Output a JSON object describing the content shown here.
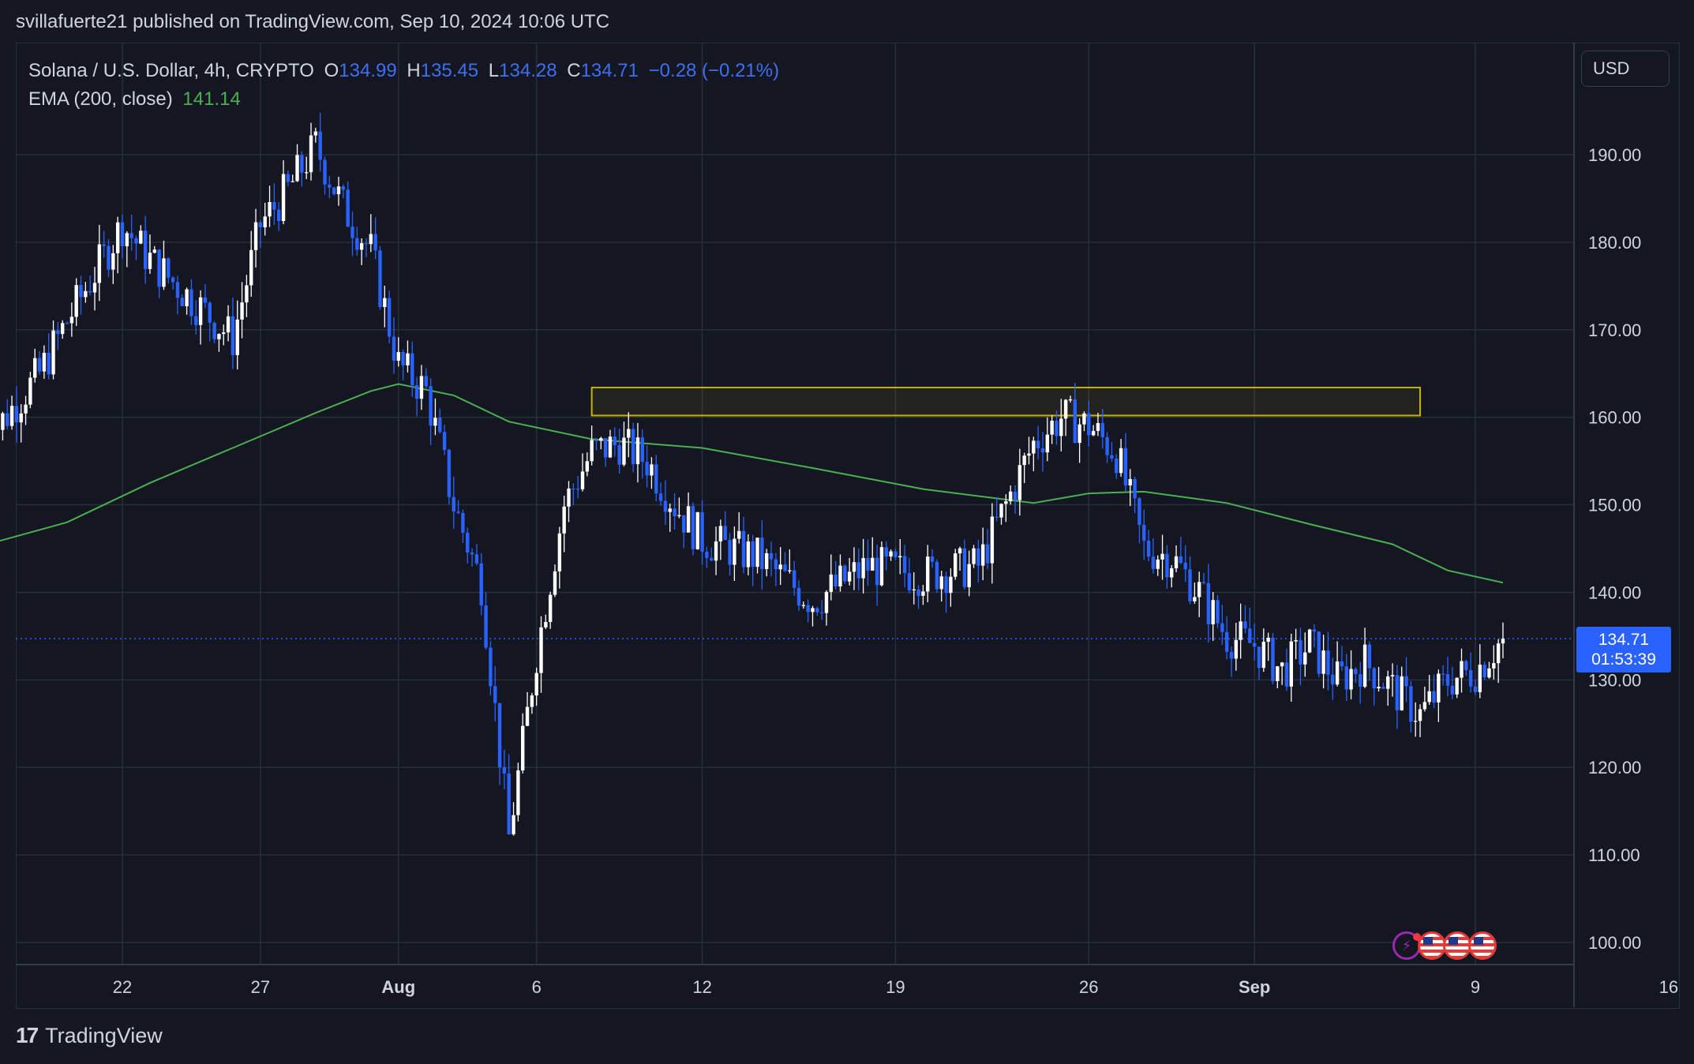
{
  "header": {
    "published": "svillafuerte21 published on TradingView.com, Sep 10, 2024 10:06 UTC"
  },
  "legend": {
    "symbol": "Solana / U.S. Dollar, 4h, CRYPTO",
    "o_label": "O",
    "o_value": "134.99",
    "h_label": "H",
    "h_value": "135.45",
    "l_label": "L",
    "l_value": "134.28",
    "c_label": "C",
    "c_value": "134.71",
    "change": "−0.28 (−0.21%)",
    "ema_label": "EMA (200, close)",
    "ema_value": "141.14"
  },
  "currency_button": "USD",
  "price_tag": {
    "price": "134.71",
    "countdown": "01:53:39"
  },
  "footer": {
    "brand": "TradingView",
    "logo": "17"
  },
  "events": [
    "lightning-icon",
    "us-flag-icon",
    "us-flag-icon",
    "us-flag-icon"
  ],
  "colors": {
    "up": "#ffffff",
    "down": "#2962ff",
    "ema": "#4caf50",
    "zone_border": "#c8b400",
    "bg": "#141722",
    "grid": "#2a2e39"
  },
  "chart_data": {
    "type": "candlestick",
    "title": "Solana / U.S. Dollar, 4h, CRYPTO",
    "y_axis": {
      "ticks": [
        "100.00",
        "110.00",
        "120.00",
        "130.00",
        "140.00",
        "150.00",
        "160.00",
        "170.00",
        "180.00",
        "190.00"
      ],
      "ylim": [
        99,
        199
      ]
    },
    "x_axis": {
      "ticks": [
        "22",
        "27",
        "Aug",
        "6",
        "12",
        "19",
        "26",
        "Sep",
        "9",
        "16"
      ]
    },
    "grid": true,
    "last_price": 134.71,
    "resistance_zone": {
      "low": 160.2,
      "high": 163.4,
      "from": "Aug 8",
      "to": "Sep 7"
    },
    "ema_200": [
      [
        "Jul 17",
        145.4
      ],
      [
        "Jul 20",
        148.0
      ],
      [
        "Jul 23",
        152.5
      ],
      [
        "Jul 26",
        156.5
      ],
      [
        "Jul 29",
        160.5
      ],
      [
        "Jul 31",
        163.0
      ],
      [
        "Aug 1",
        163.8
      ],
      [
        "Aug 3",
        162.5
      ],
      [
        "Aug 5",
        159.5
      ],
      [
        "Aug 8",
        157.5
      ],
      [
        "Aug 12",
        156.5
      ],
      [
        "Aug 16",
        154.2
      ],
      [
        "Aug 20",
        151.8
      ],
      [
        "Aug 24",
        150.2
      ],
      [
        "Aug 26",
        151.3
      ],
      [
        "Aug 28",
        151.5
      ],
      [
        "Aug 31",
        150.2
      ],
      [
        "Sep 3",
        147.8
      ],
      [
        "Sep 6",
        145.5
      ],
      [
        "Sep 8",
        142.5
      ],
      [
        "Sep 10",
        141.1
      ]
    ],
    "price_path": [
      [
        "Jul 17",
        157.0
      ],
      [
        "Jul 19",
        165.0
      ],
      [
        "Jul 20",
        171.0
      ],
      [
        "Jul 22",
        182.0
      ],
      [
        "Jul 23",
        178.0
      ],
      [
        "Jul 25",
        172.0
      ],
      [
        "Jul 26",
        169.0
      ],
      [
        "Jul 27",
        182.0
      ],
      [
        "Jul 28",
        186.0
      ],
      [
        "Jul 29",
        191.0
      ],
      [
        "Jul 30",
        184.0
      ],
      [
        "Jul 31",
        179.0
      ],
      [
        "Aug 1",
        166.0
      ],
      [
        "Aug 2",
        163.0
      ],
      [
        "Aug 3",
        150.0
      ],
      [
        "Aug 4",
        141.0
      ],
      [
        "Aug 5",
        112.0
      ],
      [
        "Aug 6",
        133.0
      ],
      [
        "Aug 7",
        150.0
      ],
      [
        "Aug 8",
        156.0
      ],
      [
        "Aug 9",
        157.0
      ],
      [
        "Aug 10",
        155.0
      ],
      [
        "Aug 11",
        150.0
      ],
      [
        "Aug 12",
        146.0
      ],
      [
        "Aug 14",
        144.0
      ],
      [
        "Aug 16",
        139.0
      ],
      [
        "Aug 18",
        143.0
      ],
      [
        "Aug 20",
        142.0
      ],
      [
        "Aug 22",
        143.0
      ],
      [
        "Aug 24",
        157.0
      ],
      [
        "Aug 25",
        160.0
      ],
      [
        "Aug 26",
        159.0
      ],
      [
        "Aug 27",
        156.0
      ],
      [
        "Aug 28",
        145.0
      ],
      [
        "Aug 29",
        144.0
      ],
      [
        "Aug 30",
        140.0
      ],
      [
        "Aug 31",
        135.0
      ],
      [
        "Sep 1",
        134.0
      ],
      [
        "Sep 2",
        131.0
      ],
      [
        "Sep 3",
        134.0
      ],
      [
        "Sep 4",
        130.0
      ],
      [
        "Sep 5",
        132.0
      ],
      [
        "Sep 6",
        129.0
      ],
      [
        "Sep 7",
        126.0
      ],
      [
        "Sep 8",
        130.0
      ],
      [
        "Sep 9",
        131.0
      ],
      [
        "Sep 10",
        134.71
      ]
    ]
  }
}
